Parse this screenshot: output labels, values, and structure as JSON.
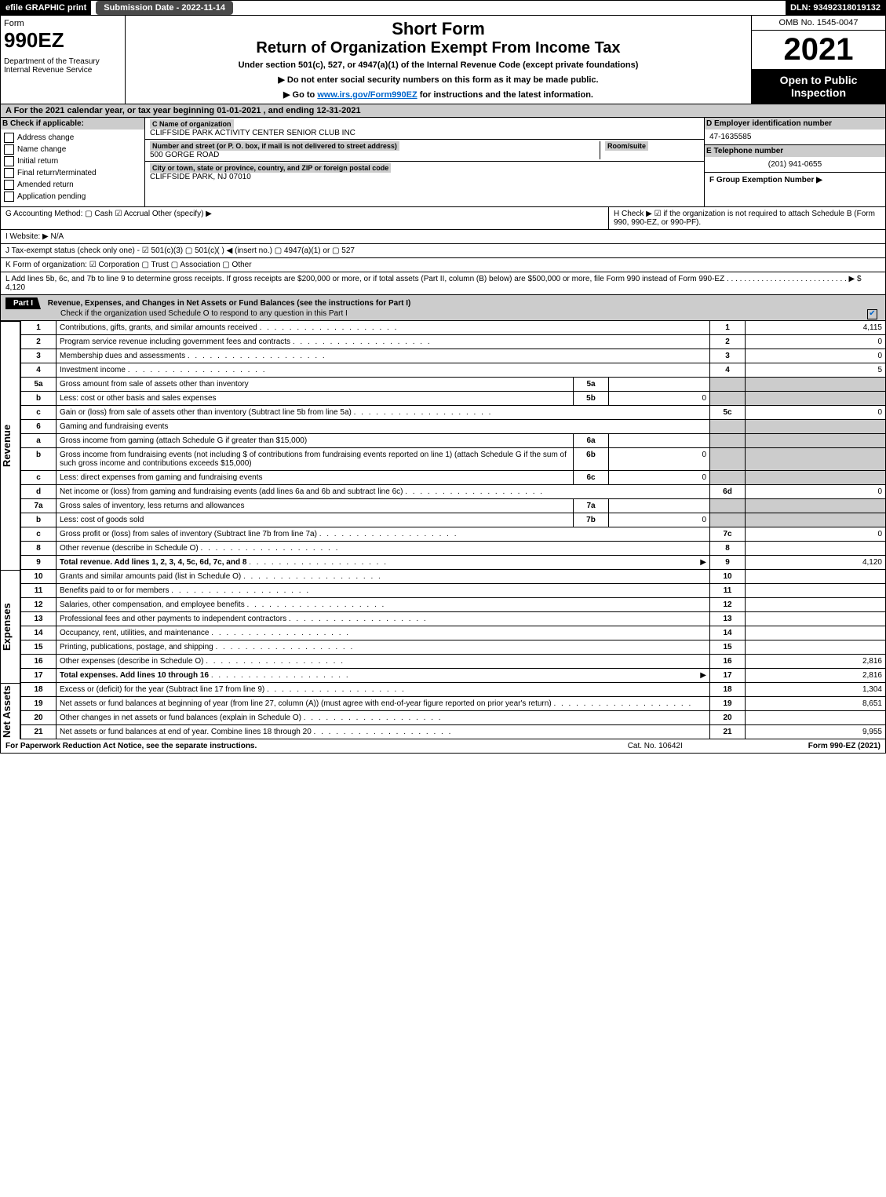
{
  "top": {
    "efile": "efile GRAPHIC print",
    "submission": "Submission Date - 2022-11-14",
    "dln": "DLN: 93492318019132"
  },
  "header": {
    "form_label": "Form",
    "form_num": "990EZ",
    "dept": "Department of the Treasury\nInternal Revenue Service",
    "short_form": "Short Form",
    "title": "Return of Organization Exempt From Income Tax",
    "sub": "Under section 501(c), 527, or 4947(a)(1) of the Internal Revenue Code (except private foundations)",
    "instr1": "▶ Do not enter social security numbers on this form as it may be made public.",
    "instr2_pre": "▶ Go to ",
    "instr2_link": "www.irs.gov/Form990EZ",
    "instr2_post": " for instructions and the latest information.",
    "omb": "OMB No. 1545-0047",
    "year": "2021",
    "open": "Open to Public Inspection"
  },
  "A": "A  For the 2021 calendar year, or tax year beginning 01-01-2021 , and ending 12-31-2021",
  "B": {
    "header": "B  Check if applicable:",
    "items": [
      "Address change",
      "Name change",
      "Initial return",
      "Final return/terminated",
      "Amended return",
      "Application pending"
    ]
  },
  "C": {
    "name_label": "C Name of organization",
    "name": "CLIFFSIDE PARK ACTIVITY CENTER SENIOR CLUB INC",
    "street_label": "Number and street (or P. O. box, if mail is not delivered to street address)",
    "street": "500 GORGE ROAD",
    "room_label": "Room/suite",
    "city_label": "City or town, state or province, country, and ZIP or foreign postal code",
    "city": "CLIFFSIDE PARK, NJ  07010"
  },
  "D": {
    "label": "D Employer identification number",
    "value": "47-1635585"
  },
  "E": {
    "label": "E Telephone number",
    "value": "(201) 941-0655"
  },
  "F": {
    "label": "F Group Exemption Number  ▶"
  },
  "G": "G Accounting Method:   ▢ Cash   ☑ Accrual   Other (specify) ▶",
  "H": "H   Check ▶ ☑ if the organization is not required to attach Schedule B (Form 990, 990-EZ, or 990-PF).",
  "I": "I Website: ▶ N/A",
  "J": "J Tax-exempt status (check only one) - ☑ 501(c)(3)  ▢ 501(c)(  ) ◀ (insert no.)  ▢ 4947(a)(1) or  ▢ 527",
  "K": "K Form of organization:  ☑ Corporation   ▢ Trust   ▢ Association   ▢ Other",
  "L": "L Add lines 5b, 6c, and 7b to line 9 to determine gross receipts. If gross receipts are $200,000 or more, or if total assets (Part II, column (B) below) are $500,000 or more, file Form 990 instead of Form 990-EZ  .  .  .  .  .  .  .  .  .  .  .  .  .  .  .  .  .  .  .  .  .  .  .  .  .  .  .  .  ▶ $ 4,120",
  "part1": {
    "title": "Revenue, Expenses, and Changes in Net Assets or Fund Balances (see the instructions for Part I)",
    "check": "Check if the organization used Schedule O to respond to any question in this Part I"
  },
  "revenue": [
    {
      "num": "1",
      "desc": "Contributions, gifts, grants, and similar amounts received",
      "line": "1",
      "val": "4,115"
    },
    {
      "num": "2",
      "desc": "Program service revenue including government fees and contracts",
      "line": "2",
      "val": "0"
    },
    {
      "num": "3",
      "desc": "Membership dues and assessments",
      "line": "3",
      "val": "0"
    },
    {
      "num": "4",
      "desc": "Investment income",
      "line": "4",
      "val": "5"
    },
    {
      "num": "5a",
      "desc": "Gross amount from sale of assets other than inventory",
      "mini": "5a",
      "minival": "",
      "shade": true
    },
    {
      "num": "b",
      "desc": "Less: cost or other basis and sales expenses",
      "mini": "5b",
      "minival": "0",
      "shade": true
    },
    {
      "num": "c",
      "desc": "Gain or (loss) from sale of assets other than inventory (Subtract line 5b from line 5a)",
      "line": "5c",
      "val": "0"
    },
    {
      "num": "6",
      "desc": "Gaming and fundraising events",
      "shade": true
    },
    {
      "num": "a",
      "desc": "Gross income from gaming (attach Schedule G if greater than $15,000)",
      "mini": "6a",
      "minival": "",
      "shade": true
    },
    {
      "num": "b",
      "desc": "Gross income from fundraising events (not including $                      of contributions from fundraising events reported on line 1) (attach Schedule G if the sum of such gross income and contributions exceeds $15,000)",
      "mini": "6b",
      "minival": "0",
      "shade": true
    },
    {
      "num": "c",
      "desc": "Less: direct expenses from gaming and fundraising events",
      "mini": "6c",
      "minival": "0",
      "shade": true
    },
    {
      "num": "d",
      "desc": "Net income or (loss) from gaming and fundraising events (add lines 6a and 6b and subtract line 6c)",
      "line": "6d",
      "val": "0"
    },
    {
      "num": "7a",
      "desc": "Gross sales of inventory, less returns and allowances",
      "mini": "7a",
      "minival": "",
      "shade": true
    },
    {
      "num": "b",
      "desc": "Less: cost of goods sold",
      "mini": "7b",
      "minival": "0",
      "shade": true
    },
    {
      "num": "c",
      "desc": "Gross profit or (loss) from sales of inventory (Subtract line 7b from line 7a)",
      "line": "7c",
      "val": "0"
    },
    {
      "num": "8",
      "desc": "Other revenue (describe in Schedule O)",
      "line": "8",
      "val": ""
    },
    {
      "num": "9",
      "desc": "Total revenue. Add lines 1, 2, 3, 4, 5c, 6d, 7c, and 8",
      "line": "9",
      "val": "4,120",
      "arrow": true,
      "bold": true
    }
  ],
  "expenses": [
    {
      "num": "10",
      "desc": "Grants and similar amounts paid (list in Schedule O)",
      "line": "10",
      "val": ""
    },
    {
      "num": "11",
      "desc": "Benefits paid to or for members",
      "line": "11",
      "val": ""
    },
    {
      "num": "12",
      "desc": "Salaries, other compensation, and employee benefits",
      "line": "12",
      "val": ""
    },
    {
      "num": "13",
      "desc": "Professional fees and other payments to independent contractors",
      "line": "13",
      "val": ""
    },
    {
      "num": "14",
      "desc": "Occupancy, rent, utilities, and maintenance",
      "line": "14",
      "val": ""
    },
    {
      "num": "15",
      "desc": "Printing, publications, postage, and shipping",
      "line": "15",
      "val": ""
    },
    {
      "num": "16",
      "desc": "Other expenses (describe in Schedule O)",
      "line": "16",
      "val": "2,816"
    },
    {
      "num": "17",
      "desc": "Total expenses. Add lines 10 through 16",
      "line": "17",
      "val": "2,816",
      "arrow": true,
      "bold": true
    }
  ],
  "netassets": [
    {
      "num": "18",
      "desc": "Excess or (deficit) for the year (Subtract line 17 from line 9)",
      "line": "18",
      "val": "1,304"
    },
    {
      "num": "19",
      "desc": "Net assets or fund balances at beginning of year (from line 27, column (A)) (must agree with end-of-year figure reported on prior year's return)",
      "line": "19",
      "val": "8,651"
    },
    {
      "num": "20",
      "desc": "Other changes in net assets or fund balances (explain in Schedule O)",
      "line": "20",
      "val": ""
    },
    {
      "num": "21",
      "desc": "Net assets or fund balances at end of year. Combine lines 18 through 20",
      "line": "21",
      "val": "9,955"
    }
  ],
  "side_labels": {
    "rev": "Revenue",
    "exp": "Expenses",
    "na": "Net Assets"
  },
  "footer": {
    "left": "For Paperwork Reduction Act Notice, see the separate instructions.",
    "cat": "Cat. No. 10642I",
    "right": "Form 990-EZ (2021)"
  }
}
